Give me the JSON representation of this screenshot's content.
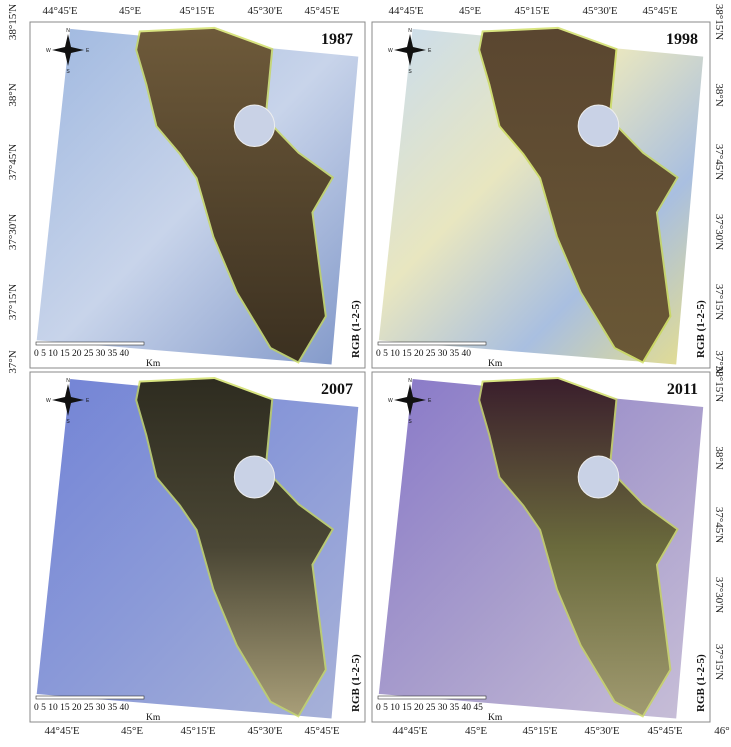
{
  "panels": [
    {
      "year": "1987",
      "band": "RGB (1-2-5)",
      "scale": "0 5 10 15 20 25 30 35 40",
      "unit": "Km"
    },
    {
      "year": "1998",
      "band": "RGB (1-2-5)",
      "scale": "0 5 10 15 20 25 30 35 40",
      "unit": "Km"
    },
    {
      "year": "2007",
      "band": "RGB (1-2-5)",
      "scale": "0 5 10 15 20 25 30 35 40",
      "unit": "Km"
    },
    {
      "year": "2011",
      "band": "RGB (1-2-5)",
      "scale": "0 5 10 15 20 25 30 35 40 45",
      "unit": "Km"
    }
  ],
  "compass": {
    "n": "N",
    "e": "E",
    "s": "S",
    "w": "W"
  },
  "lon_top_left": [
    "44°45'E",
    "45°E",
    "45°15'E",
    "45°30'E",
    "45°45'E"
  ],
  "lon_top_right": [
    "44°45'E",
    "45°E",
    "45°15'E",
    "45°30'E",
    "45°45'E"
  ],
  "lon_bottom_left": [
    "44°45'E",
    "45°E",
    "45°15'E",
    "45°30'E",
    "45°45'E"
  ],
  "lon_bottom_right": [
    "44°45'E",
    "45°E",
    "45°15'E",
    "45°30'E",
    "45°45'E",
    "46°"
  ],
  "lat_left": [
    "38°15'N",
    "38°N",
    "37°45'N",
    "37°30'N",
    "37°15'N",
    "37°N"
  ],
  "lat_right_top": [
    "38°15'N",
    "38°N",
    "37°45'N",
    "37°30'N",
    "37°15'N",
    "37°N"
  ],
  "lat_right_bottom": [
    "38°15'N",
    "38°N",
    "37°45'N",
    "37°30'N",
    "37°15'N"
  ]
}
